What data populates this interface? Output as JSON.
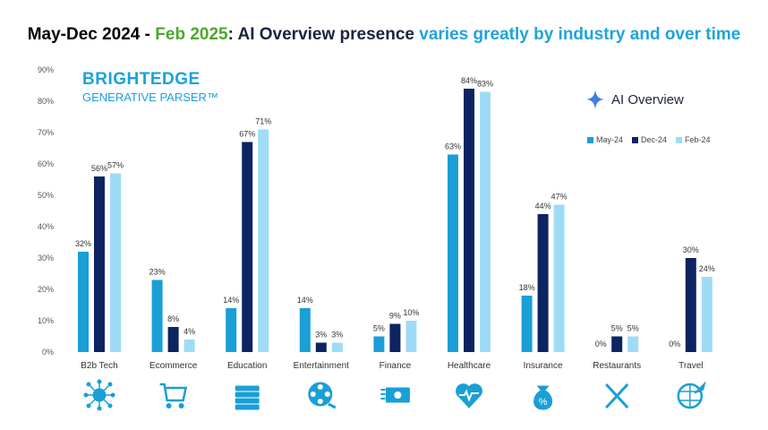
{
  "title": {
    "part1": "May-Dec 2024 - ",
    "part2": "Feb 2025",
    "part3": ": AI Overview presence ",
    "part4": "varies greatly by industry and over time"
  },
  "logo": {
    "line1": "BRIGHTEDGE",
    "line2": "GENERATIVE PARSER™"
  },
  "badge": {
    "label": "AI Overview",
    "icon": "sparkle-icon"
  },
  "colors": {
    "May-24": "#1a9fd6",
    "Dec-24": "#0c2461",
    "Feb-24": "#9edcf6",
    "title_green": "#4ea72e",
    "title_blue": "#21a3d8"
  },
  "chart_data": {
    "type": "bar",
    "categories": [
      "B2b Tech",
      "Ecommerce",
      "Education",
      "Entertainment",
      "Finance",
      "Healthcare",
      "Insurance",
      "Restaurants",
      "Travel"
    ],
    "series": [
      {
        "name": "May-24",
        "values": [
          32,
          23,
          14,
          14,
          5,
          63,
          18,
          0,
          0
        ]
      },
      {
        "name": "Dec-24",
        "values": [
          56,
          8,
          67,
          3,
          9,
          84,
          44,
          5,
          30
        ]
      },
      {
        "name": "Feb-24",
        "values": [
          57,
          4,
          71,
          3,
          10,
          83,
          47,
          5,
          24
        ]
      }
    ],
    "ylim": [
      0,
      90
    ],
    "yticks": [
      "0%",
      "10%",
      "20%",
      "30%",
      "40%",
      "50%",
      "60%",
      "70%",
      "80%",
      "90%"
    ],
    "value_suffix": "%",
    "grid": false,
    "legend": "top-right",
    "category_icons": [
      "cloud-network-icon",
      "shopping-cart-icon",
      "books-icon",
      "film-reel-icon",
      "money-icon",
      "heart-pulse-icon",
      "money-bag-percent-icon",
      "fork-knife-icon",
      "globe-plane-icon"
    ]
  }
}
